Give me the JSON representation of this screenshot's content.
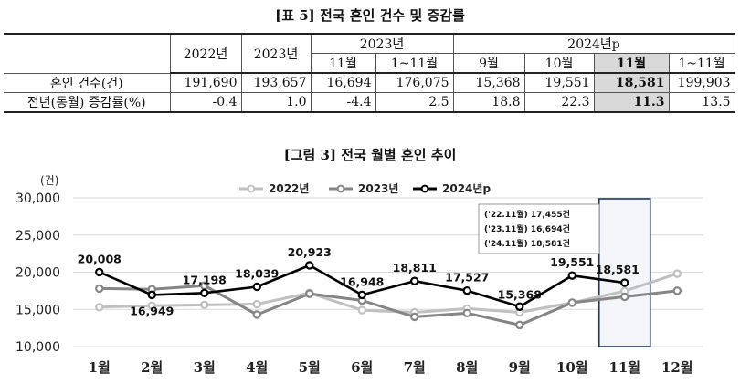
{
  "table": {
    "title": "[표 5] 전국 혼인 건수 및 증감률",
    "header_top": [
      "2022년",
      "2023년",
      "2023년",
      "2024년p"
    ],
    "header_sub": [
      "11월",
      "1~11월",
      "9월",
      "10월",
      "11월",
      "1~11월"
    ],
    "rows": [
      {
        "label": "혼인 건수(건)",
        "values": [
          "191,690",
          "193,657",
          "16,694",
          "176,075",
          "15,368",
          "19,551",
          "18,581",
          "199,903"
        ]
      },
      {
        "label": "전년(동월) 증감률(%)",
        "values": [
          "-0.4",
          "1.0",
          "-4.4",
          "2.5",
          "18.8",
          "22.3",
          "11.3",
          "13.5"
        ]
      }
    ]
  },
  "figure": {
    "title": "[그림 3] 전국 월별 혼인 추이",
    "annotation": [
      "('22.11월)  17,455건",
      "('23.11월)  16,694건",
      "('24.11월)  18,581건"
    ]
  },
  "chart_data": {
    "type": "line",
    "ylabel": "(건)",
    "ylim": [
      10000,
      30000
    ],
    "yticks": [
      "10,000",
      "15,000",
      "20,000",
      "25,000",
      "30,000"
    ],
    "categories": [
      "1월",
      "2월",
      "3월",
      "4월",
      "5월",
      "6월",
      "7월",
      "8월",
      "9월",
      "10월",
      "11월",
      "12월"
    ],
    "legend_position": "top",
    "series": [
      {
        "name": "2022년",
        "color": "#c0c0c0",
        "values": [
          15300,
          15500,
          15600,
          15700,
          17200,
          14900,
          14600,
          15100,
          14600,
          15900,
          17455,
          19800
        ]
      },
      {
        "name": "2023년",
        "color": "#858585",
        "values": [
          17800,
          17700,
          18200,
          14300,
          17100,
          16200,
          14000,
          14500,
          12900,
          15900,
          16694,
          17500
        ]
      },
      {
        "name": "2024년p",
        "color": "#000000",
        "values": [
          20008,
          16949,
          17198,
          18039,
          20923,
          16948,
          18811,
          17527,
          15368,
          19551,
          18581,
          null
        ]
      }
    ],
    "data_labels": [
      "20,008",
      "16,949",
      "17,198",
      "18,039",
      "20,923",
      "16,948",
      "18,811",
      "17,527",
      "15,368",
      "19,551",
      "18,581"
    ]
  }
}
